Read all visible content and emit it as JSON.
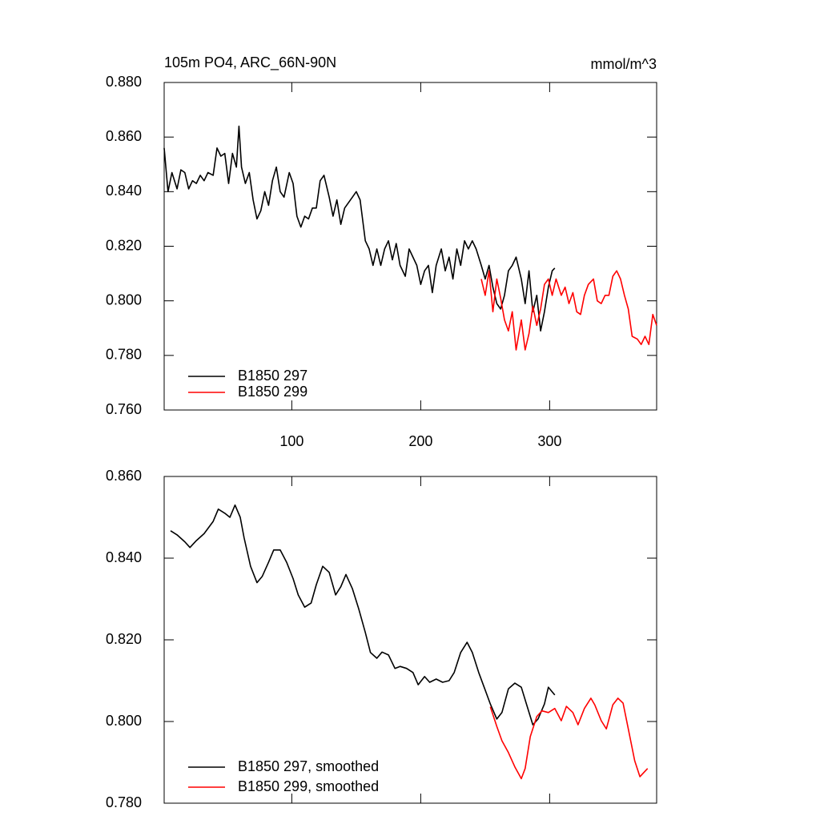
{
  "chart_data": [
    {
      "type": "line",
      "title": "105m PO4, ARC_66N-90N",
      "subtitle": "mmol/m^3",
      "xlim": [
        1,
        383
      ],
      "xticks": [
        100,
        200,
        300
      ],
      "show_xtick_labels": true,
      "ylim": [
        0.76,
        0.88
      ],
      "yticks": [
        {
          "value": 0.76,
          "label": "0.760"
        },
        {
          "value": 0.78,
          "label": "0.780"
        },
        {
          "value": 0.8,
          "label": "0.800"
        },
        {
          "value": 0.82,
          "label": "0.820"
        },
        {
          "value": 0.84,
          "label": "0.840"
        },
        {
          "value": 0.86,
          "label": "0.860"
        },
        {
          "value": 0.88,
          "label": "0.880"
        }
      ],
      "legend": "lower left",
      "series": [
        {
          "name": "B1850 297",
          "color": "#000000",
          "x": [
            1,
            4,
            7,
            11,
            14,
            17,
            20,
            23,
            26,
            29,
            32,
            35,
            39,
            42,
            45,
            48,
            51,
            54,
            57,
            59,
            61,
            64,
            67,
            70,
            73,
            76,
            79,
            82,
            85,
            88,
            91,
            94,
            98,
            101,
            104,
            107,
            110,
            113,
            116,
            119,
            122,
            125,
            129,
            132,
            135,
            138,
            141,
            147,
            150,
            153,
            157,
            160,
            163,
            166,
            169,
            172,
            175,
            178,
            181,
            184,
            188,
            191,
            194,
            197,
            200,
            203,
            206,
            209,
            212,
            216,
            219,
            222,
            225,
            228,
            231,
            234,
            237,
            240,
            243,
            247,
            250,
            253,
            256,
            259,
            262,
            265,
            268,
            271,
            274,
            278,
            281,
            284,
            287,
            290,
            293,
            296,
            299,
            302,
            304
          ],
          "values": [
            0.856,
            0.84,
            0.847,
            0.841,
            0.848,
            0.847,
            0.841,
            0.844,
            0.843,
            0.846,
            0.844,
            0.847,
            0.846,
            0.856,
            0.853,
            0.854,
            0.843,
            0.854,
            0.849,
            0.864,
            0.849,
            0.843,
            0.847,
            0.837,
            0.83,
            0.833,
            0.84,
            0.835,
            0.844,
            0.849,
            0.84,
            0.838,
            0.847,
            0.843,
            0.831,
            0.827,
            0.831,
            0.83,
            0.834,
            0.834,
            0.844,
            0.846,
            0.838,
            0.831,
            0.837,
            0.828,
            0.834,
            0.838,
            0.84,
            0.837,
            0.822,
            0.819,
            0.813,
            0.819,
            0.813,
            0.819,
            0.822,
            0.815,
            0.821,
            0.813,
            0.809,
            0.819,
            0.816,
            0.813,
            0.806,
            0.811,
            0.813,
            0.803,
            0.813,
            0.819,
            0.811,
            0.816,
            0.808,
            0.819,
            0.813,
            0.822,
            0.819,
            0.822,
            0.819,
            0.813,
            0.808,
            0.813,
            0.805,
            0.799,
            0.797,
            0.802,
            0.811,
            0.813,
            0.816,
            0.808,
            0.799,
            0.811,
            0.796,
            0.802,
            0.789,
            0.796,
            0.805,
            0.811,
            0.812
          ]
        },
        {
          "name": "B1850 299",
          "color": "#ff0000",
          "x": [
            247,
            250,
            253,
            256,
            259,
            262,
            265,
            268,
            271,
            274,
            278,
            281,
            284,
            287,
            290,
            293,
            296,
            299,
            302,
            305,
            309,
            312,
            315,
            318,
            321,
            324,
            327,
            330,
            334,
            337,
            340,
            343,
            346,
            349,
            352,
            355,
            358,
            361,
            364,
            368,
            371,
            374,
            377,
            380,
            383
          ],
          "values": [
            0.808,
            0.802,
            0.811,
            0.796,
            0.808,
            0.801,
            0.793,
            0.789,
            0.796,
            0.782,
            0.793,
            0.782,
            0.788,
            0.798,
            0.791,
            0.797,
            0.806,
            0.808,
            0.802,
            0.808,
            0.802,
            0.805,
            0.799,
            0.803,
            0.796,
            0.795,
            0.802,
            0.806,
            0.808,
            0.8,
            0.799,
            0.802,
            0.802,
            0.809,
            0.811,
            0.808,
            0.802,
            0.797,
            0.787,
            0.786,
            0.784,
            0.787,
            0.784,
            0.795,
            0.791
          ]
        }
      ]
    },
    {
      "type": "line",
      "xlim": [
        1,
        383
      ],
      "xticks": [
        100,
        200,
        300
      ],
      "show_xtick_labels": false,
      "ylim": [
        0.78,
        0.86
      ],
      "yticks": [
        {
          "value": 0.78,
          "label": "0.780"
        },
        {
          "value": 0.8,
          "label": "0.800"
        },
        {
          "value": 0.82,
          "label": "0.820"
        },
        {
          "value": 0.84,
          "label": "0.840"
        },
        {
          "value": 0.86,
          "label": "0.860"
        }
      ],
      "legend": "lower left",
      "series": [
        {
          "name": "B1850 297, smoothed",
          "color": "#000000",
          "x": [
            6,
            11,
            17,
            21,
            26,
            32,
            39,
            43,
            48,
            52,
            56,
            60,
            63,
            68,
            73,
            77,
            82,
            86,
            91,
            96,
            101,
            105,
            110,
            115,
            119,
            124,
            129,
            134,
            138,
            142,
            147,
            152,
            157,
            161,
            166,
            170,
            175,
            180,
            184,
            189,
            194,
            198,
            203,
            207,
            212,
            217,
            222,
            226,
            231,
            236,
            240,
            245,
            250,
            254,
            259,
            263,
            268,
            273,
            278,
            282,
            287,
            291,
            296,
            299,
            304
          ],
          "values": [
            0.8467,
            0.8457,
            0.844,
            0.8426,
            0.8443,
            0.846,
            0.849,
            0.852,
            0.851,
            0.85,
            0.853,
            0.85,
            0.845,
            0.838,
            0.834,
            0.8355,
            0.839,
            0.842,
            0.842,
            0.839,
            0.835,
            0.831,
            0.828,
            0.829,
            0.8335,
            0.838,
            0.8365,
            0.831,
            0.833,
            0.836,
            0.8325,
            0.8275,
            0.8218,
            0.8169,
            0.8155,
            0.817,
            0.8163,
            0.813,
            0.8135,
            0.813,
            0.812,
            0.809,
            0.811,
            0.8096,
            0.8104,
            0.8096,
            0.81,
            0.812,
            0.8169,
            0.8194,
            0.8169,
            0.812,
            0.8077,
            0.8043,
            0.8006,
            0.8022,
            0.808,
            0.8094,
            0.8084,
            0.8043,
            0.7992,
            0.8006,
            0.8043,
            0.8084,
            0.8065
          ]
        },
        {
          "name": "B1850 299, smoothed",
          "color": "#ff0000",
          "x": [
            254,
            259,
            263,
            268,
            273,
            278,
            281,
            285,
            290,
            294,
            299,
            304,
            309,
            313,
            318,
            322,
            327,
            332,
            335,
            340,
            344,
            349,
            353,
            357,
            361,
            366,
            370,
            373,
            376
          ],
          "values": [
            0.8036,
            0.7988,
            0.7953,
            0.7924,
            0.7889,
            0.786,
            0.7885,
            0.7963,
            0.8012,
            0.8026,
            0.8022,
            0.8032,
            0.8002,
            0.8037,
            0.8022,
            0.7992,
            0.8032,
            0.8057,
            0.8041,
            0.8002,
            0.7982,
            0.8041,
            0.8057,
            0.8045,
            0.7982,
            0.7904,
            0.7865,
            0.7875,
            0.7885
          ]
        }
      ]
    }
  ]
}
